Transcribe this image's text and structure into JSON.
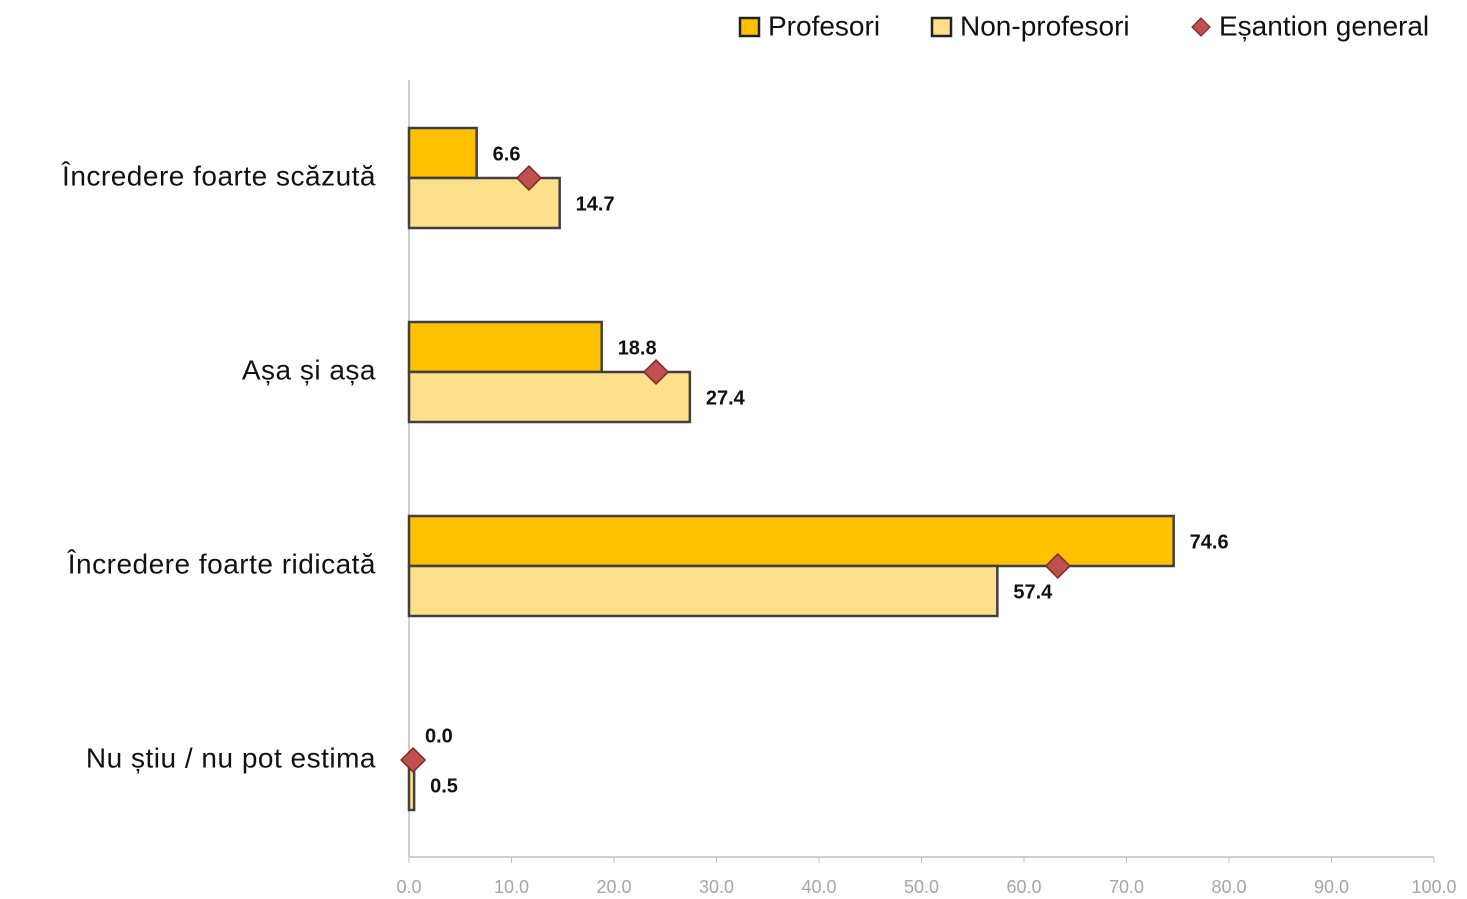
{
  "chart_data": {
    "type": "bar",
    "orientation": "horizontal",
    "categories": [
      "Încredere foarte scăzută",
      "Așa și așa",
      "Încredere foarte ridicată",
      "Nu știu / nu pot estima"
    ],
    "series": [
      {
        "name": "Profesori",
        "color": "#FFC000",
        "values": [
          6.6,
          18.8,
          74.6,
          0.0
        ],
        "value_labels": [
          "6.6",
          "18.8",
          "74.6",
          "0.0"
        ]
      },
      {
        "name": "Non-profesori",
        "color": "#FFE08A",
        "values": [
          14.7,
          27.4,
          57.4,
          0.5
        ],
        "value_labels": [
          "14.7",
          "27.4",
          "57.4",
          "0.5"
        ]
      },
      {
        "name": "Eșantion general",
        "color": "#C0504D",
        "marker": "diamond",
        "values": [
          11.7,
          24.1,
          63.3,
          0.4
        ]
      }
    ],
    "xlim": [
      0,
      100
    ],
    "xticks": [
      {
        "value": 0,
        "label": "0.0"
      },
      {
        "value": 10,
        "label": "10.0"
      },
      {
        "value": 20,
        "label": "20.0"
      },
      {
        "value": 30,
        "label": "30.0"
      },
      {
        "value": 40,
        "label": "40.0"
      },
      {
        "value": 50,
        "label": "50.0"
      },
      {
        "value": 60,
        "label": "60.0"
      },
      {
        "value": 70,
        "label": "70.0"
      },
      {
        "value": 80,
        "label": "80.0"
      },
      {
        "value": 90,
        "label": "90.0"
      },
      {
        "value": 100,
        "label": "100.0"
      }
    ],
    "legend": "top-right"
  }
}
